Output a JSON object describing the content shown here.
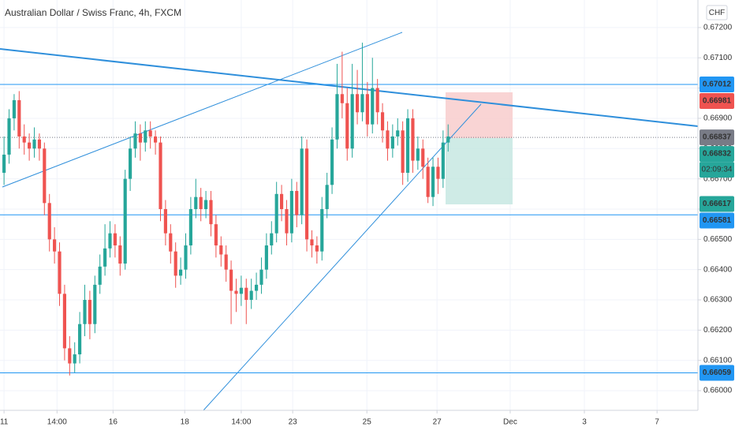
{
  "chart_data": {
    "type": "candlestick",
    "title": "Australian Dollar / Swiss Franc, 4h, FXCM",
    "currency": "CHF",
    "countdown": "02:09:34",
    "up_color": "#26a69a",
    "down_color": "#ef5350",
    "grid": true,
    "x": [
      0,
      1,
      2,
      3,
      4,
      5,
      6,
      7,
      8,
      9,
      10,
      11,
      12,
      13,
      14,
      15,
      16,
      17,
      18,
      19,
      20,
      21,
      22,
      23,
      24,
      25,
      26,
      27,
      28,
      29,
      30,
      31,
      32,
      33,
      34,
      35,
      36,
      37,
      38,
      39,
      40,
      41,
      42,
      43,
      44,
      45,
      46,
      47,
      48,
      49,
      50,
      51,
      52,
      53,
      54,
      55,
      56,
      57,
      58,
      59,
      60,
      61,
      62,
      63,
      64,
      65,
      66,
      67,
      68,
      69,
      70,
      71,
      72,
      73,
      74,
      75,
      76,
      77,
      78,
      79,
      80,
      81,
      82,
      83,
      84,
      85,
      86,
      87,
      88
    ],
    "open": [
      0.6672,
      0.6678,
      0.669,
      0.6696,
      0.6684,
      0.6682,
      0.668,
      0.6683,
      0.668,
      0.6662,
      0.665,
      0.6646,
      0.6632,
      0.6614,
      0.6609,
      0.6612,
      0.6622,
      0.663,
      0.6622,
      0.6635,
      0.6641,
      0.6647,
      0.6652,
      0.6648,
      0.6642,
      0.667,
      0.668,
      0.6685,
      0.6682,
      0.6686,
      0.6684,
      0.6682,
      0.666,
      0.6652,
      0.6646,
      0.6638,
      0.664,
      0.6648,
      0.666,
      0.6664,
      0.666,
      0.6663,
      0.6655,
      0.6648,
      0.6645,
      0.664,
      0.6633,
      0.6632,
      0.6634,
      0.663,
      0.6633,
      0.6635,
      0.664,
      0.6648,
      0.6652,
      0.6665,
      0.666,
      0.6652,
      0.6666,
      0.6658,
      0.668,
      0.665,
      0.6648,
      0.6646,
      0.666,
      0.6668,
      0.6683,
      0.6698,
      0.6695,
      0.668,
      0.6698,
      0.6692,
      0.6698,
      0.6688,
      0.67,
      0.6692,
      0.6686,
      0.668,
      0.6684,
      0.6686,
      0.6672,
      0.669,
      0.6676,
      0.668,
      0.6674,
      0.6664,
      0.6674,
      0.667,
      0.6682
    ],
    "high": [
      0.6684,
      0.6693,
      0.6698,
      0.6699,
      0.6688,
      0.6685,
      0.6687,
      0.6685,
      0.6682,
      0.6665,
      0.6654,
      0.6649,
      0.6635,
      0.6618,
      0.6616,
      0.6626,
      0.6635,
      0.6633,
      0.6638,
      0.6645,
      0.6655,
      0.6656,
      0.6655,
      0.6651,
      0.6673,
      0.6684,
      0.6689,
      0.6688,
      0.6689,
      0.6689,
      0.6686,
      0.6684,
      0.6663,
      0.6655,
      0.6649,
      0.6644,
      0.6652,
      0.6664,
      0.667,
      0.6667,
      0.6666,
      0.6666,
      0.6658,
      0.6651,
      0.6648,
      0.6643,
      0.6637,
      0.6638,
      0.6637,
      0.6637,
      0.6639,
      0.6644,
      0.6652,
      0.6656,
      0.6669,
      0.6668,
      0.6663,
      0.667,
      0.6669,
      0.6684,
      0.6683,
      0.6653,
      0.6651,
      0.6664,
      0.6672,
      0.6687,
      0.6708,
      0.6712,
      0.67,
      0.6708,
      0.6706,
      0.6715,
      0.6702,
      0.671,
      0.6703,
      0.6695,
      0.6689,
      0.6688,
      0.669,
      0.6689,
      0.6693,
      0.6693,
      0.6684,
      0.6683,
      0.6677,
      0.6677,
      0.6677,
      0.6686,
      0.6688
    ],
    "low": [
      0.6668,
      0.6675,
      0.6686,
      0.668,
      0.6678,
      0.6676,
      0.6677,
      0.6676,
      0.6658,
      0.6646,
      0.6642,
      0.6628,
      0.661,
      0.6605,
      0.6606,
      0.6609,
      0.6618,
      0.6617,
      0.6619,
      0.6632,
      0.6638,
      0.6644,
      0.6644,
      0.6638,
      0.664,
      0.6666,
      0.6677,
      0.6676,
      0.6679,
      0.668,
      0.6678,
      0.6656,
      0.6648,
      0.6642,
      0.6634,
      0.6635,
      0.6637,
      0.6645,
      0.6657,
      0.6656,
      0.6657,
      0.6651,
      0.6644,
      0.6641,
      0.6636,
      0.6622,
      0.6626,
      0.6628,
      0.6622,
      0.6627,
      0.663,
      0.6632,
      0.6637,
      0.6645,
      0.6649,
      0.6656,
      0.6648,
      0.6649,
      0.6654,
      0.6655,
      0.6646,
      0.6644,
      0.6642,
      0.6643,
      0.6657,
      0.6665,
      0.668,
      0.669,
      0.6676,
      0.6677,
      0.6688,
      0.6689,
      0.6684,
      0.6685,
      0.6688,
      0.6682,
      0.6676,
      0.6677,
      0.6681,
      0.6668,
      0.6669,
      0.6672,
      0.6673,
      0.667,
      0.6662,
      0.6661,
      0.6665,
      0.6667,
      0.6679
    ],
    "close": [
      0.6678,
      0.669,
      0.6696,
      0.6684,
      0.6682,
      0.668,
      0.6683,
      0.668,
      0.6662,
      0.665,
      0.6646,
      0.6632,
      0.6614,
      0.6609,
      0.6612,
      0.6622,
      0.663,
      0.6622,
      0.6635,
      0.6641,
      0.6647,
      0.6652,
      0.6648,
      0.6642,
      0.667,
      0.668,
      0.6685,
      0.6682,
      0.6686,
      0.6684,
      0.6682,
      0.666,
      0.6652,
      0.6646,
      0.6638,
      0.664,
      0.6648,
      0.666,
      0.6664,
      0.666,
      0.6663,
      0.6655,
      0.6648,
      0.6645,
      0.664,
      0.6633,
      0.6632,
      0.6634,
      0.663,
      0.6633,
      0.6635,
      0.664,
      0.6648,
      0.6652,
      0.6665,
      0.666,
      0.6652,
      0.6666,
      0.6658,
      0.668,
      0.665,
      0.6648,
      0.6646,
      0.666,
      0.6668,
      0.6683,
      0.6698,
      0.6695,
      0.668,
      0.6698,
      0.6692,
      0.6698,
      0.6688,
      0.67,
      0.6692,
      0.6686,
      0.668,
      0.6684,
      0.6686,
      0.6672,
      0.669,
      0.6676,
      0.668,
      0.6674,
      0.6664,
      0.6674,
      0.667,
      0.6682,
      0.6684
    ],
    "xlim": [
      -0.8,
      137.5
    ],
    "xticks": [
      {
        "value": 0,
        "label": "11"
      },
      {
        "value": 10.5,
        "label": "14:00"
      },
      {
        "value": 21.6,
        "label": "16"
      },
      {
        "value": 35.8,
        "label": "18"
      },
      {
        "value": 47,
        "label": "14:00"
      },
      {
        "value": 57.2,
        "label": "23"
      },
      {
        "value": 71.9,
        "label": "25"
      },
      {
        "value": 85.8,
        "label": "27"
      },
      {
        "value": 100.3,
        "label": "Dec"
      },
      {
        "value": 115,
        "label": "3"
      },
      {
        "value": 129.4,
        "label": "7"
      }
    ],
    "ylim": [
      0.65935,
      0.67291
    ],
    "yticks": [
      {
        "value": 0.66,
        "label": "0.66000"
      },
      {
        "value": 0.661,
        "label": "0.66100"
      },
      {
        "value": 0.662,
        "label": "0.66200"
      },
      {
        "value": 0.663,
        "label": "0.66300"
      },
      {
        "value": 0.664,
        "label": "0.66400"
      },
      {
        "value": 0.665,
        "label": "0.66500"
      },
      {
        "value": 0.666,
        "label": "0.66600"
      },
      {
        "value": 0.667,
        "label": "0.66700"
      },
      {
        "value": 0.668,
        "label": "0.66800"
      },
      {
        "value": 0.669,
        "label": "0.66900"
      },
      {
        "value": 0.67,
        "label": "0.67000"
      },
      {
        "value": 0.671,
        "label": "0.67100"
      },
      {
        "value": 0.672,
        "label": "0.67200"
      }
    ],
    "price_labels": [
      {
        "value": 0.67012,
        "label": "0.67012",
        "color": "#2196f3",
        "line": "solid"
      },
      {
        "value": 0.66981,
        "label": "0.66981",
        "color": "#ef5350"
      },
      {
        "value": 0.66837,
        "label": "0.66837",
        "color": "#787b86",
        "line": "dotted"
      },
      {
        "value": 0.66832,
        "label": "0.66832",
        "color": "#26a69a",
        "countdown": true
      },
      {
        "value": 0.66617,
        "label": "0.66617",
        "color": "#26a69a"
      },
      {
        "value": 0.66581,
        "label": "0.66581",
        "color": "#2196f3",
        "line": "solid"
      },
      {
        "value": 0.66059,
        "label": "0.66059",
        "color": "#2196f3",
        "line": "solid"
      }
    ]
  }
}
